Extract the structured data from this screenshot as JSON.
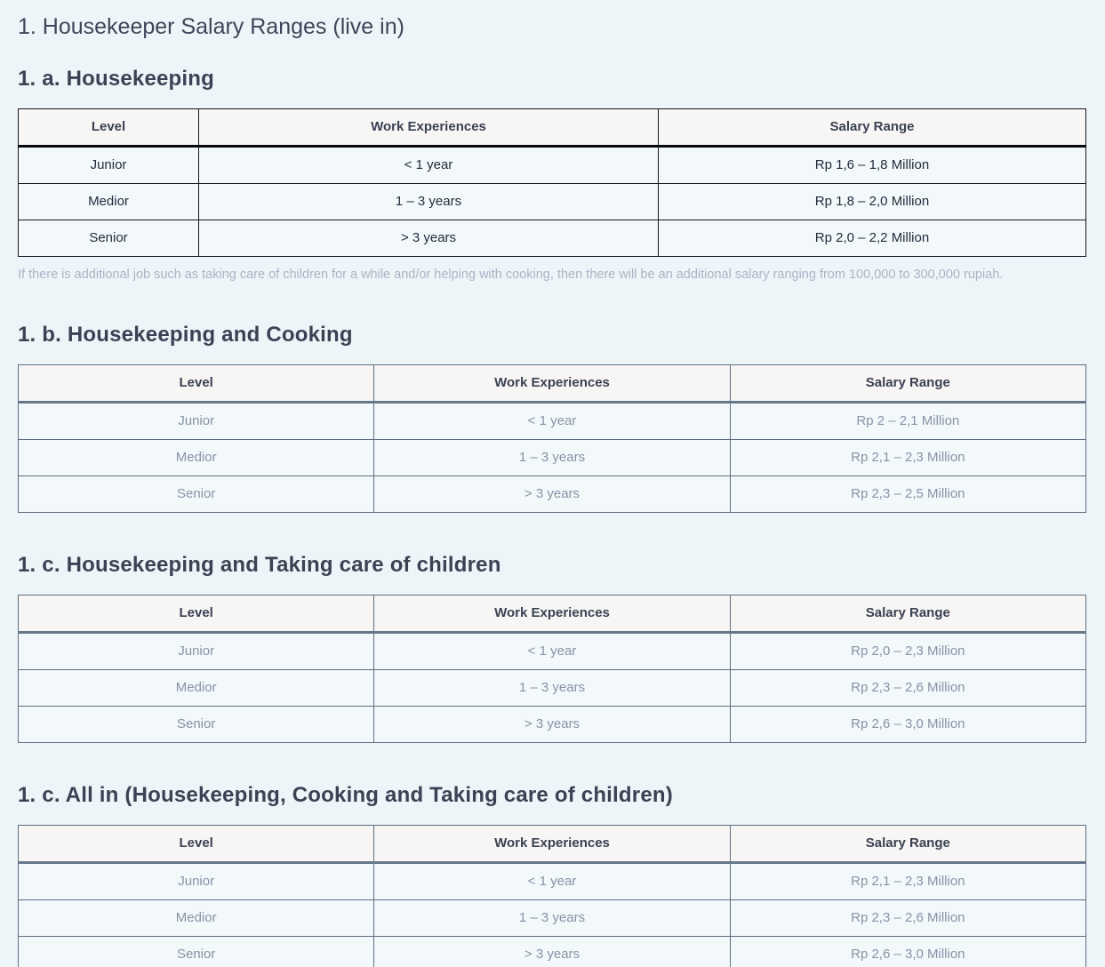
{
  "page": {
    "title": "1. Housekeeper Salary Ranges (live in)"
  },
  "colors": {
    "page_background": "#eef5f9",
    "heading_text": "#3c4254",
    "table_header_background": "#f8f6f5",
    "table_cell_background": "#f3f8fb",
    "table1_border": "#14171f",
    "table1_body_text": "#242d3c",
    "slate_table_border": "#5d6e80",
    "slate_table_body_text": "#8794a6",
    "footnote_text": "#a9b5c6"
  },
  "note": "If there is additional job such as taking care of children for a while and/or helping with cooking, then there will be an additional salary ranging from 100,000 to 300,000 rupiah.",
  "sections": [
    {
      "heading": "1. a. Housekeeping",
      "table": {
        "columns": [
          "Level",
          "Work Experiences",
          "Salary Range"
        ],
        "rows": [
          [
            "Junior",
            "< 1 year",
            "Rp 1,6 – 1,8 Million"
          ],
          [
            "Medior",
            "1 – 3 years",
            "Rp 1,8 – 2,0 Million"
          ],
          [
            "Senior",
            "> 3 years",
            "Rp 2,0 – 2,2 Million"
          ]
        ]
      }
    },
    {
      "heading": "1. b. Housekeeping and Cooking",
      "table": {
        "columns": [
          "Level",
          "Work Experiences",
          "Salary Range"
        ],
        "rows": [
          [
            "Junior",
            "< 1 year",
            "Rp 2 – 2,1 Million"
          ],
          [
            "Medior",
            "1 – 3 years",
            "Rp 2,1 – 2,3 Million"
          ],
          [
            "Senior",
            "> 3 years",
            "Rp 2,3 – 2,5 Million"
          ]
        ]
      }
    },
    {
      "heading": "1. c. Housekeeping and Taking care of children",
      "table": {
        "columns": [
          "Level",
          "Work Experiences",
          "Salary Range"
        ],
        "rows": [
          [
            "Junior",
            "< 1 year",
            "Rp 2,0 – 2,3 Million"
          ],
          [
            "Medior",
            "1 – 3 years",
            "Rp 2,3 – 2,6 Million"
          ],
          [
            "Senior",
            "> 3 years",
            "Rp 2,6 – 3,0 Million"
          ]
        ]
      }
    },
    {
      "heading": "1. c. All in (Housekeeping, Cooking and Taking care of children)",
      "table": {
        "columns": [
          "Level",
          "Work Experiences",
          "Salary Range"
        ],
        "rows": [
          [
            "Junior",
            "< 1 year",
            "Rp 2,1 – 2,3 Million"
          ],
          [
            "Medior",
            "1 – 3 years",
            "Rp 2,3 – 2,6 Million"
          ],
          [
            "Senior",
            "> 3 years",
            "Rp 2,6 – 3,0 Million"
          ]
        ]
      }
    }
  ]
}
